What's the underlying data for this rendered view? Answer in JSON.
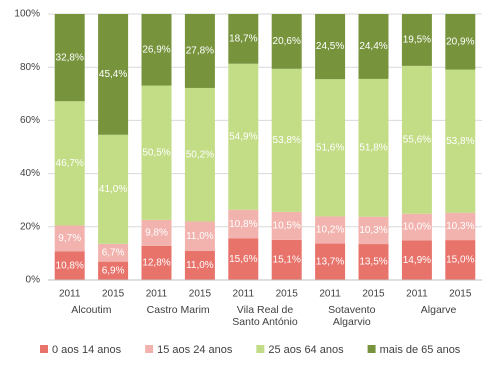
{
  "chart_data": {
    "type": "stacked_bar",
    "categories": [
      "2011",
      "2015",
      "2011",
      "2015",
      "2011",
      "2015",
      "2011",
      "2015",
      "2011",
      "2015"
    ],
    "groups": [
      "Alcoutim",
      "Castro Marim",
      "Vila Real de Santo António",
      "Sotavento Algarvio",
      "Algarve"
    ],
    "series": [
      {
        "name": "0 aos 14 anos",
        "color": "#e8736b",
        "values": [
          10.8,
          6.9,
          12.8,
          11.0,
          15.6,
          15.1,
          13.7,
          13.5,
          14.9,
          15.0
        ],
        "value_labels": [
          "10,8%",
          "6,9%",
          "12,8%",
          "11,0%",
          "15,6%",
          "15,1%",
          "13,7%",
          "13,5%",
          "14,9%",
          "15,0%"
        ]
      },
      {
        "name": "15 aos 24 anos",
        "color": "#f2b3ae",
        "values": [
          9.7,
          6.7,
          9.8,
          11.0,
          10.8,
          10.5,
          10.2,
          10.3,
          10.0,
          10.3
        ],
        "value_labels": [
          "9,7%",
          "6,7%",
          "9,8%",
          "11,0%",
          "10,8%",
          "10,5%",
          "10,2%",
          "10,3%",
          "10,0%",
          "10,3%"
        ]
      },
      {
        "name": "25 aos 64 anos",
        "color": "#c3dc86",
        "values": [
          46.7,
          41.0,
          50.5,
          50.2,
          54.9,
          53.8,
          51.6,
          51.8,
          55.6,
          53.8
        ],
        "value_labels": [
          "46,7%",
          "41,0%",
          "50,5%",
          "50,2%",
          "54,9%",
          "53,8%",
          "51,6%",
          "51,8%",
          "55,6%",
          "53,8%"
        ]
      },
      {
        "name": "mais de 65 anos",
        "color": "#77943d",
        "values": [
          32.8,
          45.4,
          26.9,
          27.8,
          18.7,
          20.6,
          24.5,
          24.4,
          19.5,
          20.9
        ],
        "value_labels": [
          "32,8%",
          "45,4%",
          "26,9%",
          "27,8%",
          "18,7%",
          "20,6%",
          "24,5%",
          "24,4%",
          "19,5%",
          "20,9%"
        ]
      }
    ],
    "ylim": [
      0,
      100
    ],
    "yticks": [
      {
        "value": 0,
        "label": "0%"
      },
      {
        "value": 20,
        "label": "20%"
      },
      {
        "value": 40,
        "label": "40%"
      },
      {
        "value": 60,
        "label": "60%"
      },
      {
        "value": 80,
        "label": "80%"
      },
      {
        "value": 100,
        "label": "100%"
      }
    ],
    "grid": true,
    "legend": "bottom"
  }
}
